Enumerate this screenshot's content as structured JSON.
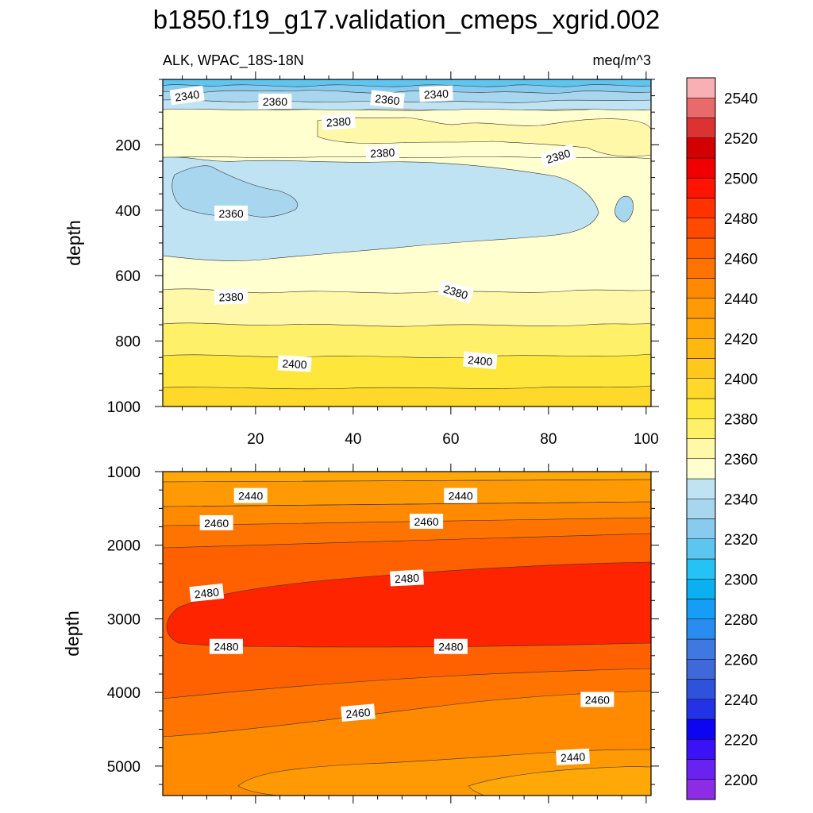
{
  "chart_data": {
    "type": "contour",
    "title": "b1850.f19_g17.validation_cmeps_xgrid.002",
    "left_subtitle": "ALK, WPAC_18S-18N",
    "right_subtitle": "meq/m^3",
    "units": "meq/m^3",
    "xlim": [
      1,
      101
    ],
    "x_ticks": [
      20,
      40,
      60,
      80,
      100
    ],
    "colorbar": {
      "levels": [
        2200,
        2210,
        2220,
        2230,
        2240,
        2250,
        2260,
        2270,
        2280,
        2290,
        2300,
        2310,
        2320,
        2330,
        2340,
        2350,
        2360,
        2370,
        2380,
        2390,
        2400,
        2410,
        2420,
        2430,
        2440,
        2450,
        2460,
        2470,
        2480,
        2490,
        2500,
        2510,
        2520,
        2530,
        2540,
        2550
      ],
      "labels": [
        "2200",
        "2220",
        "2240",
        "2260",
        "2280",
        "2300",
        "2320",
        "2340",
        "2360",
        "2380",
        "2400",
        "2420",
        "2440",
        "2460",
        "2480",
        "2500",
        "2520",
        "2540"
      ],
      "colors": [
        "#8c2ce4",
        "#6a22f0",
        "#3a12f5",
        "#0d05f2",
        "#2232e4",
        "#2f52dd",
        "#4068d8",
        "#3f78e0",
        "#2a8cf0",
        "#169df5",
        "#0bb0f0",
        "#25c2f5",
        "#5cc6f0",
        "#88cbee",
        "#a8d6ef",
        "#bfe3f3",
        "#ffffd0",
        "#fff8a8",
        "#fff06a",
        "#ffe63a",
        "#ffd82a",
        "#ffc81c",
        "#ffb810",
        "#ffa808",
        "#ff9a04",
        "#ff8a00",
        "#ff7400",
        "#ff6000",
        "#ff4a00",
        "#ff3200",
        "#ff1400",
        "#f00000",
        "#d20000",
        "#dc3232",
        "#e86a6a",
        "#f8b0b4"
      ]
    },
    "panels": [
      {
        "name": "upper-ocean",
        "ylabel": "depth",
        "ylim": [
          0,
          1000
        ],
        "y_ticks": [
          200,
          400,
          600,
          800,
          1000
        ],
        "regions": [
          {
            "value": 2380,
            "fill": "#ffffd0"
          },
          {
            "value": 2360,
            "fill": "#bfe3f3"
          },
          {
            "value": 2350,
            "fill": "#a8d6ef"
          },
          {
            "value": 2340,
            "fill": "#88cbee"
          },
          {
            "value": 2330,
            "fill": "#5cc6f0"
          },
          {
            "value": 2390,
            "fill": "#fff8a8"
          },
          {
            "value": 2400,
            "fill": "#fff06a"
          },
          {
            "value": 2410,
            "fill": "#ffe63a"
          },
          {
            "value": 2420,
            "fill": "#ffd82a"
          }
        ],
        "contour_labels": [
          {
            "text": "2340",
            "x": 6,
            "depth": 50,
            "rot": -8
          },
          {
            "text": "2360",
            "x": 24,
            "depth": 68,
            "rot": 0
          },
          {
            "text": "2360",
            "x": 47,
            "depth": 62,
            "rot": 6
          },
          {
            "text": "2340",
            "x": 57,
            "depth": 45,
            "rot": -3
          },
          {
            "text": "2380",
            "x": 37,
            "depth": 130,
            "rot": -4
          },
          {
            "text": "2380",
            "x": 46,
            "depth": 225,
            "rot": -3
          },
          {
            "text": "2380",
            "x": 82,
            "depth": 235,
            "rot": -17
          },
          {
            "text": "2360",
            "x": 15,
            "depth": 410,
            "rot": 0
          },
          {
            "text": "2380",
            "x": 15,
            "depth": 665,
            "rot": -2
          },
          {
            "text": "2380",
            "x": 61,
            "depth": 650,
            "rot": 17
          },
          {
            "text": "2400",
            "x": 28,
            "depth": 870,
            "rot": 3
          },
          {
            "text": "2400",
            "x": 66,
            "depth": 860,
            "rot": 5
          }
        ]
      },
      {
        "name": "deep-ocean",
        "ylabel": "depth",
        "ylim": [
          1000,
          5400
        ],
        "y_ticks": [
          1000,
          2000,
          3000,
          4000,
          5000
        ],
        "regions": [
          {
            "value": 2460,
            "fill": "#ff7400"
          },
          {
            "value": 2430,
            "fill": "#ffa808"
          },
          {
            "value": 2440,
            "fill": "#ff9a04"
          },
          {
            "value": 2450,
            "fill": "#ff8a00"
          },
          {
            "value": 2470,
            "fill": "#ff6000"
          },
          {
            "value": 2480,
            "fill": "#ff2400"
          }
        ],
        "contour_labels": [
          {
            "text": "2440",
            "x": 19,
            "depth": 1330,
            "rot": 0
          },
          {
            "text": "2440",
            "x": 62,
            "depth": 1330,
            "rot": 0
          },
          {
            "text": "2460",
            "x": 12,
            "depth": 1700,
            "rot": 0
          },
          {
            "text": "2460",
            "x": 55,
            "depth": 1680,
            "rot": 0
          },
          {
            "text": "2480",
            "x": 10,
            "depth": 2650,
            "rot": -6
          },
          {
            "text": "2480",
            "x": 51,
            "depth": 2450,
            "rot": -3
          },
          {
            "text": "2480",
            "x": 14,
            "depth": 3380,
            "rot": 0
          },
          {
            "text": "2480",
            "x": 60,
            "depth": 3380,
            "rot": 0
          },
          {
            "text": "2460",
            "x": 41,
            "depth": 4280,
            "rot": -5
          },
          {
            "text": "2460",
            "x": 90,
            "depth": 4100,
            "rot": 0
          },
          {
            "text": "2440",
            "x": 85,
            "depth": 4880,
            "rot": -3
          }
        ]
      }
    ]
  }
}
